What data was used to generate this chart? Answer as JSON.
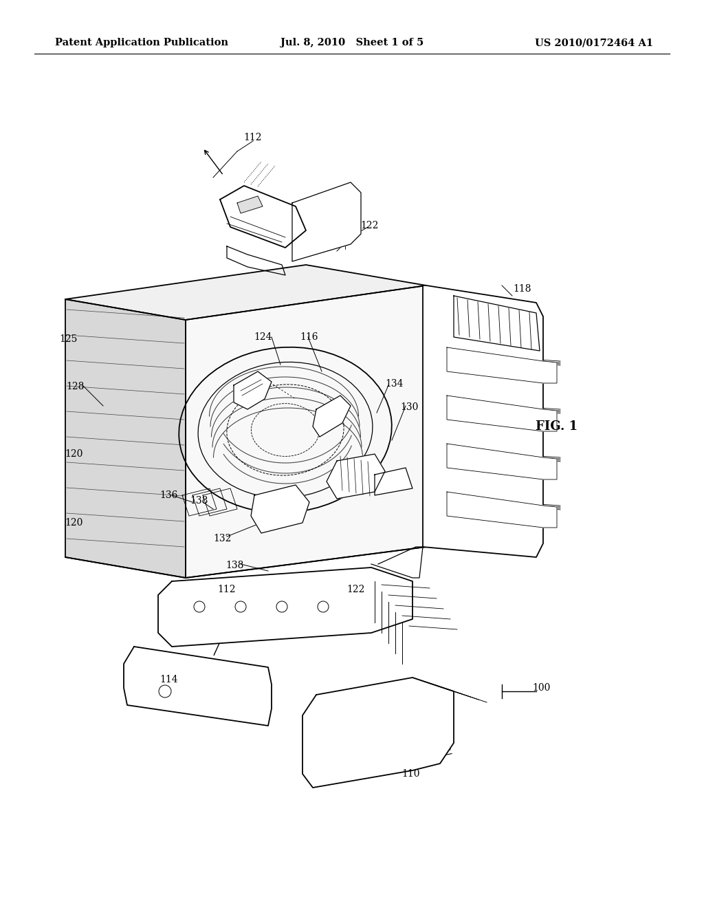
{
  "background_color": "#ffffff",
  "header_left": "Patent Application Publication",
  "header_center": "Jul. 8, 2010   Sheet 1 of 5",
  "header_right": "US 2010/0172464 A1",
  "fig_label": "FIG. 1",
  "title_fontsize": 10.5,
  "label_fontsize": 10,
  "fig_label_fontsize": 13
}
